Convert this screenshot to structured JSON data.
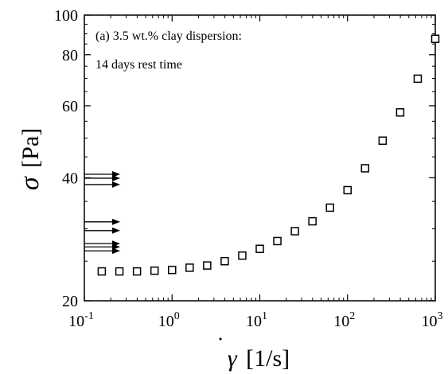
{
  "chart_data": {
    "type": "scatter",
    "x_scale": "log",
    "y_scale": "log",
    "xlim": [
      0.1,
      1000
    ],
    "ylim": [
      20,
      100
    ],
    "x_major_ticks": [
      {
        "value": 0.1,
        "base": "10",
        "exp": "-1"
      },
      {
        "value": 1,
        "base": "10",
        "exp": "0"
      },
      {
        "value": 10,
        "base": "10",
        "exp": "1"
      },
      {
        "value": 100,
        "base": "10",
        "exp": "2"
      },
      {
        "value": 1000,
        "base": "10",
        "exp": "3"
      }
    ],
    "y_major_ticks": [
      {
        "value": 20,
        "label": "20"
      },
      {
        "value": 40,
        "label": "40"
      },
      {
        "value": 60,
        "label": "60"
      },
      {
        "value": 80,
        "label": "80"
      },
      {
        "value": 100,
        "label": "100"
      }
    ],
    "y_minor_ticks": [
      25,
      30,
      35,
      45,
      50,
      55,
      65,
      70,
      75,
      85,
      90,
      95
    ],
    "xlabel": {
      "symbol": "γ",
      "dot": "˙",
      "unit": "[1/s]"
    },
    "ylabel": {
      "symbol": "σ",
      "unit": "[Pa]"
    },
    "annotations": [
      {
        "line1": "(a) 3.5 wt.% clay dispersion:",
        "line2": "14 days rest time"
      }
    ],
    "series": [
      {
        "marker": "open-square",
        "x": [
          0.158,
          0.251,
          0.398,
          0.631,
          1.0,
          1.585,
          2.512,
          3.981,
          6.31,
          10.0,
          15.85,
          25.12,
          39.81,
          63.1,
          100.0,
          158.5,
          251.2,
          398.1,
          631.0,
          1000.0
        ],
        "y": [
          23.6,
          23.6,
          23.6,
          23.7,
          23.8,
          24.1,
          24.4,
          25.0,
          25.8,
          26.8,
          28.0,
          29.6,
          31.3,
          33.8,
          37.3,
          42.2,
          49.3,
          57.8,
          69.9,
          87.5
        ]
      }
    ],
    "arrows": {
      "x_start": 0.1,
      "x_end": 0.25,
      "y": [
        40.8,
        39.9,
        38.5,
        31.2,
        29.7,
        27.6,
        27.1,
        26.5
      ]
    },
    "colors": {
      "marker_stroke": "#000000",
      "axis": "#000000",
      "background": "#ffffff"
    }
  }
}
